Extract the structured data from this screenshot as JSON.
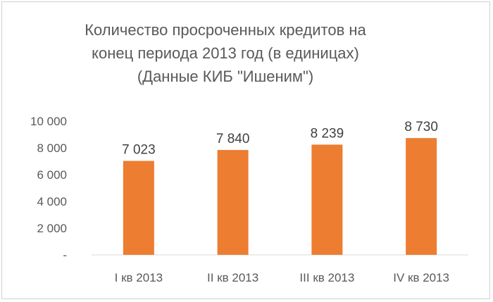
{
  "chart_data": {
    "type": "bar",
    "title_lines": [
      "Количество просроченных кредитов на",
      "конец периода 2013  год (в единицах)",
      "(Данные КИБ \"Ишеним\")"
    ],
    "categories": [
      "I кв 2013",
      "II кв 2013",
      "III кв 2013",
      "IV кв 2013"
    ],
    "values": [
      7023,
      7840,
      8239,
      8730
    ],
    "data_labels": [
      "7 023",
      "7 840",
      "8 239",
      "8 730"
    ],
    "y_ticks": [
      {
        "value": 0,
        "label": "-"
      },
      {
        "value": 2000,
        "label": "2 000"
      },
      {
        "value": 4000,
        "label": "4 000"
      },
      {
        "value": 6000,
        "label": "6 000"
      },
      {
        "value": 8000,
        "label": "8 000"
      },
      {
        "value": 10000,
        "label": "10 000"
      }
    ],
    "ylim": [
      0,
      10000
    ],
    "grid": false,
    "legend": "none",
    "bar_color": "#ED7D31",
    "axis_color": "#d9d9d9"
  }
}
